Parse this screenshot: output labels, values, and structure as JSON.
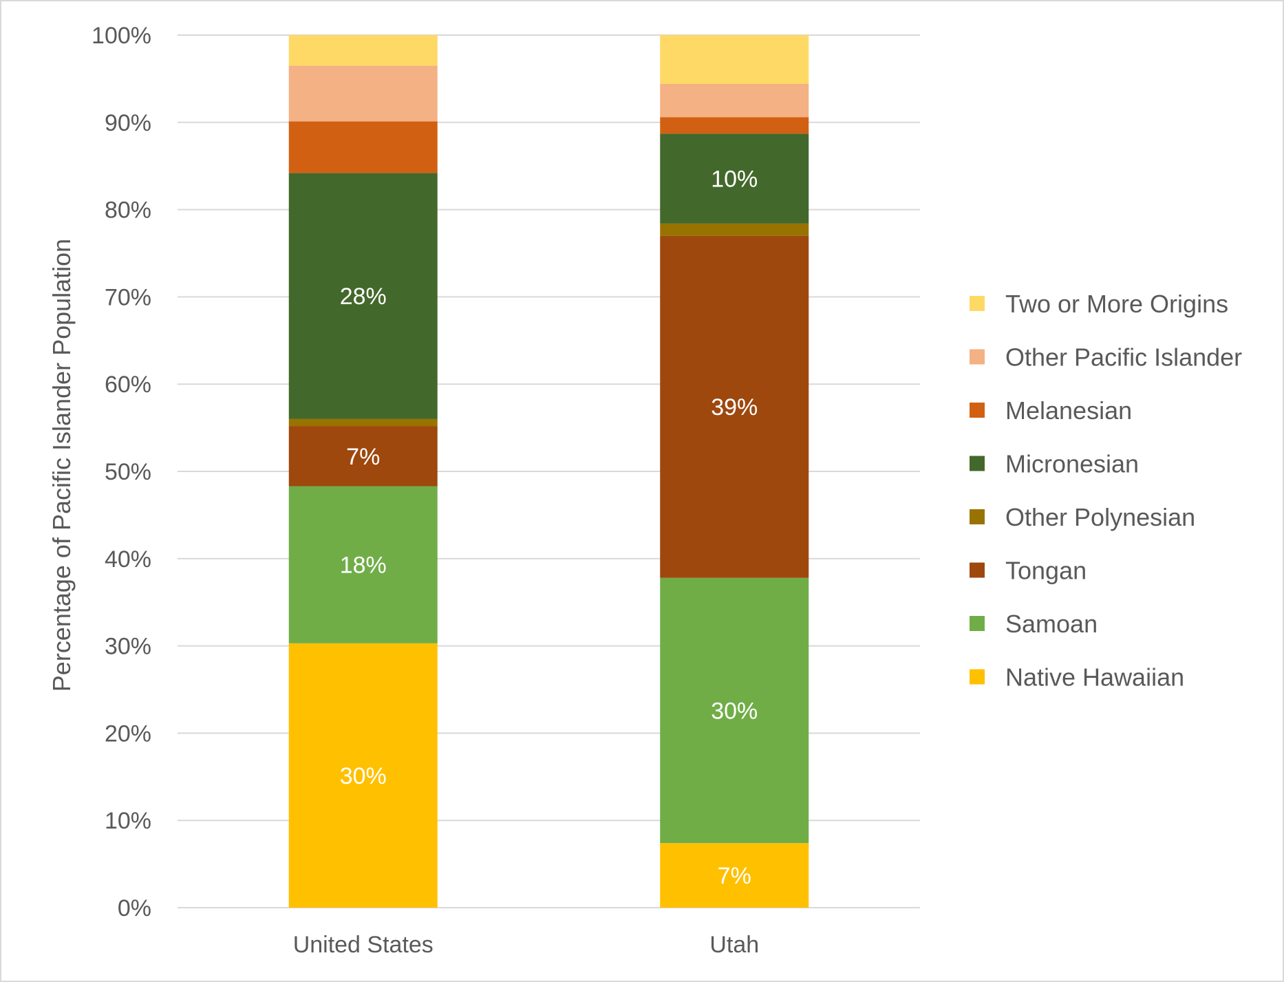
{
  "chart_data": {
    "type": "bar",
    "stacked": true,
    "categories": [
      "United States",
      "Utah"
    ],
    "ylabel": "Percentage of Pacific Islander Population",
    "xlabel": "",
    "ylim": [
      0,
      100
    ],
    "yticks": [
      "0%",
      "10%",
      "20%",
      "30%",
      "40%",
      "50%",
      "60%",
      "70%",
      "80%",
      "90%",
      "100%"
    ],
    "grid": true,
    "legend_position": "right",
    "series": [
      {
        "name": "Native Hawaiian",
        "color": "#FFC000",
        "values": [
          30.3,
          7.4
        ],
        "labels": [
          "30%",
          "7%"
        ]
      },
      {
        "name": "Samoan",
        "color": "#70AD47",
        "values": [
          18.0,
          30.4
        ],
        "labels": [
          "18%",
          "30%"
        ]
      },
      {
        "name": "Tongan",
        "color": "#9E480E",
        "values": [
          6.9,
          39.2
        ],
        "labels": [
          "7%",
          "39%"
        ]
      },
      {
        "name": "Other Polynesian",
        "color": "#997300",
        "values": [
          0.8,
          1.4
        ],
        "labels": [
          "",
          ""
        ]
      },
      {
        "name": "Micronesian",
        "color": "#43682B",
        "values": [
          28.2,
          10.3
        ],
        "labels": [
          "28%",
          "10%"
        ]
      },
      {
        "name": "Melanesian",
        "color": "#D26012",
        "values": [
          5.9,
          1.9
        ],
        "labels": [
          "",
          ""
        ]
      },
      {
        "name": "Other Pacific Islander",
        "color": "#F4B183",
        "values": [
          6.4,
          3.8
        ],
        "labels": [
          "",
          ""
        ]
      },
      {
        "name": "Two or More Origins",
        "color": "#FFD966",
        "values": [
          3.5,
          5.6
        ],
        "labels": [
          "",
          ""
        ]
      }
    ]
  }
}
